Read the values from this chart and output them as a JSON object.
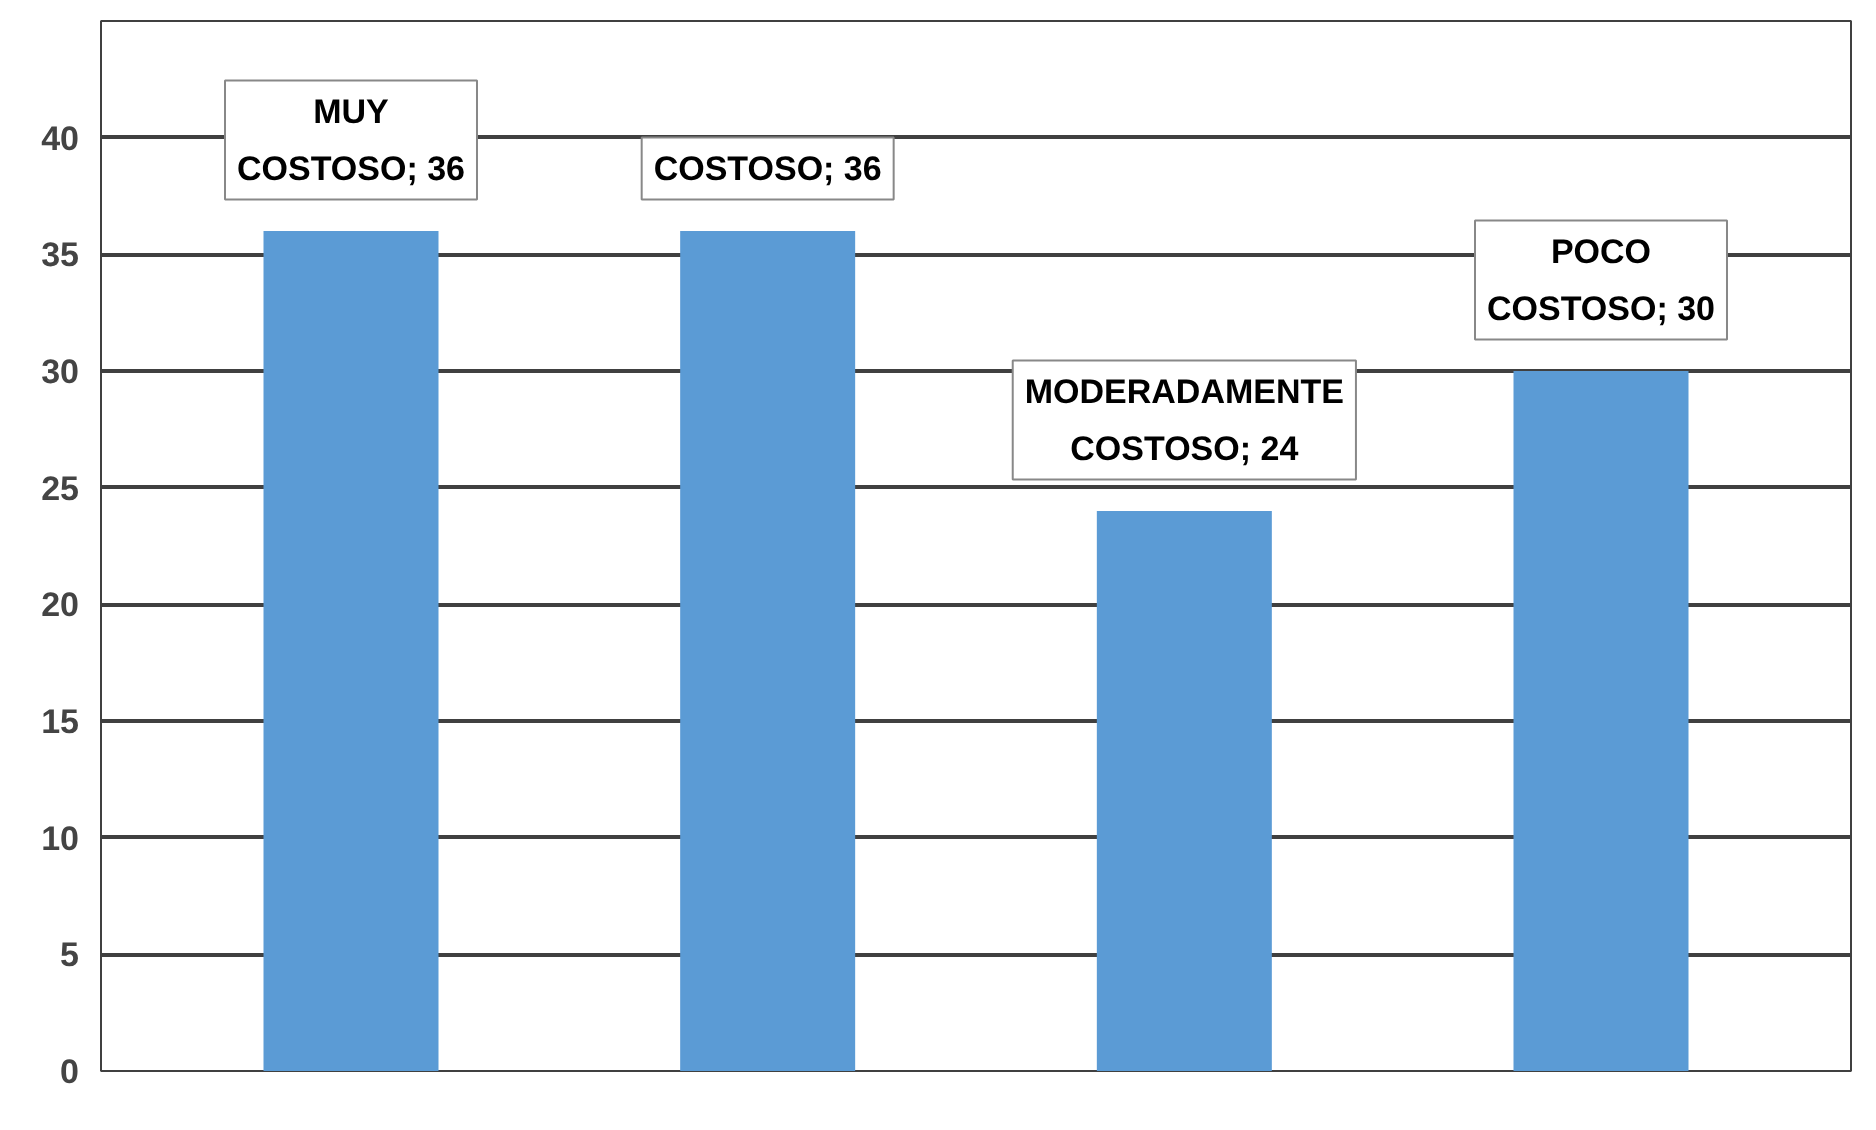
{
  "chart_data": {
    "type": "bar",
    "categories": [
      null,
      null,
      null,
      null
    ],
    "values": [
      36,
      36,
      24,
      30
    ],
    "value_labels": [
      "MUY COSTOSO; 36",
      "COSTOSO; 36",
      "MODERADAMENTE COSTOSO; 24",
      "POCO COSTOSO; 30"
    ],
    "color": "#5b9bd5",
    "ylim": [
      0,
      45
    ],
    "yticks": [
      0,
      5,
      10,
      15,
      20,
      25,
      30,
      35,
      40
    ],
    "grid": "y",
    "tick_labels": "y"
  }
}
